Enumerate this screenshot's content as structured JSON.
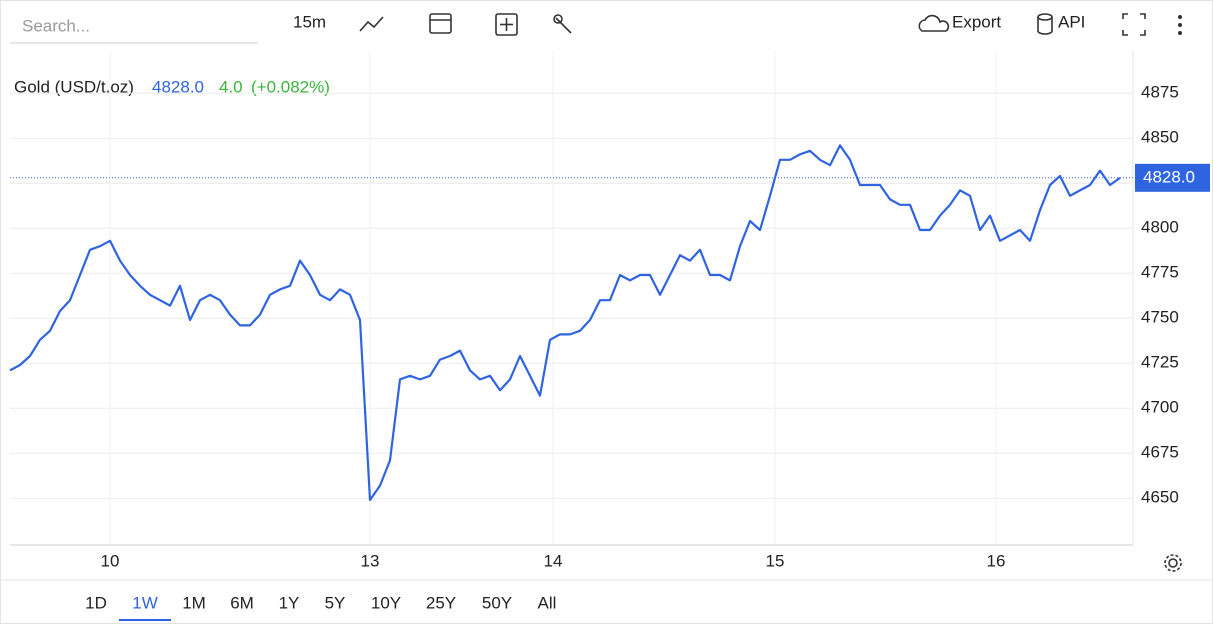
{
  "toolbar": {
    "search_placeholder": "Search...",
    "interval": "15m",
    "export": "Export",
    "api": "API"
  },
  "range_buttons": [
    "1D",
    "1W",
    "1M",
    "6M",
    "1Y",
    "5Y",
    "10Y",
    "25Y",
    "50Y",
    "All"
  ],
  "active_range": "1W",
  "chart_data": {
    "type": "line",
    "change": "4.0",
    "change_pct": "(+0.082%)",
    "price_label": "4828.0",
    "series": [
      {
        "name": "Gold (USD/t.oz)",
        "color": "#2f64e0",
        "x": [
          0,
          1,
          2,
          3,
          4,
          5,
          6,
          7,
          8,
          9,
          10,
          11,
          12,
          13,
          14,
          15,
          16,
          17,
          18,
          19,
          20,
          21,
          22,
          23,
          24,
          25,
          26,
          27,
          28,
          29,
          30,
          31,
          32,
          33,
          34,
          35,
          36,
          37,
          38,
          39,
          40,
          41,
          42,
          43,
          44,
          45,
          46,
          47,
          48,
          49,
          50,
          51,
          52,
          53,
          54,
          55,
          56,
          57,
          58,
          59,
          60,
          61,
          62,
          63,
          64,
          65,
          66,
          67,
          68,
          69,
          70,
          71,
          72,
          73,
          74,
          75,
          76,
          77,
          78,
          79,
          80,
          81,
          82,
          83,
          84,
          85,
          86,
          87,
          88,
          89,
          90,
          91,
          92,
          93,
          94,
          95,
          96,
          97,
          98,
          99,
          100,
          101,
          102,
          103,
          104,
          105,
          106,
          107,
          108,
          109,
          110,
          111
        ],
        "values": [
          4721,
          4724,
          4729,
          4738,
          4743,
          4754,
          4760,
          4774,
          4788,
          4790,
          4793,
          4782,
          4774,
          4768,
          4763,
          4760,
          4757,
          4768,
          4749,
          4760,
          4763,
          4760,
          4752,
          4746,
          4746,
          4752,
          4763,
          4766,
          4768,
          4782,
          4774,
          4763,
          4760,
          4766,
          4763,
          4749,
          4649,
          4657,
          4671,
          4716,
          4718,
          4716,
          4718,
          4727,
          4729,
          4732,
          4721,
          4716,
          4718,
          4710,
          4716,
          4729,
          4718,
          4707,
          4738,
          4741,
          4741,
          4743,
          4749,
          4760,
          4760,
          4774,
          4771,
          4774,
          4774,
          4763,
          4774,
          4785,
          4782,
          4788,
          4774,
          4774,
          4771,
          4790,
          4804,
          4799,
          4818,
          4838,
          4838,
          4841,
          4843,
          4838,
          4835,
          4846,
          4838,
          4824,
          4824,
          4824,
          4816,
          4813,
          4813,
          4799,
          4799,
          4807,
          4813,
          4821,
          4818,
          4799,
          4807,
          4793,
          4796,
          4799,
          4793,
          4810,
          4824,
          4829,
          4818,
          4821,
          4824,
          4832,
          4824,
          4828
        ]
      }
    ],
    "xlim": [
      0,
      112.3
    ],
    "xticks": [
      {
        "value": 10,
        "label": "10"
      },
      {
        "value": 36,
        "label": "13"
      },
      {
        "value": 54.3,
        "label": "14"
      },
      {
        "value": 76.5,
        "label": "15"
      },
      {
        "value": 98.6,
        "label": "16"
      }
    ],
    "ylim": [
      4624,
      4899
    ],
    "yticks": [
      4650,
      4675,
      4700,
      4725,
      4750,
      4775,
      4800,
      4825,
      4850,
      4875
    ],
    "grid": true
  }
}
